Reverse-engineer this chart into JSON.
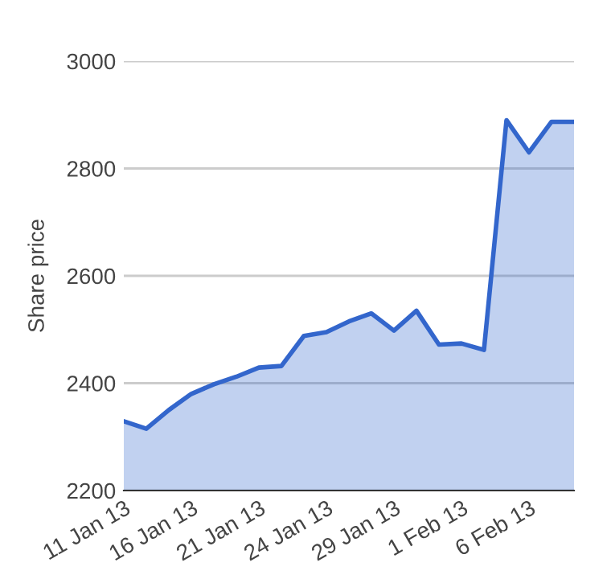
{
  "chart_data": {
    "type": "area",
    "ylabel": "Share price",
    "categories": [
      "11 Jan 13",
      null,
      null,
      "16 Jan 13",
      null,
      null,
      "21 Jan 13",
      null,
      null,
      "24 Jan 13",
      null,
      null,
      "29 Jan 13",
      null,
      null,
      "1 Feb 13",
      null,
      null,
      "6 Feb 13",
      null,
      null
    ],
    "series": [
      {
        "color": "#3366cc",
        "values": [
          2329,
          2315,
          2350,
          2380,
          2398,
          2412,
          2429,
          2432,
          2488,
          2495,
          2515,
          2530,
          2498,
          2535,
          2472,
          2474,
          2462,
          2890,
          2830,
          2887,
          2887
        ]
      }
    ],
    "ylim": [
      2200,
      3000
    ],
    "yticks": [
      2200,
      2400,
      2600,
      2800,
      3000
    ],
    "grid": "y",
    "legend": false
  }
}
